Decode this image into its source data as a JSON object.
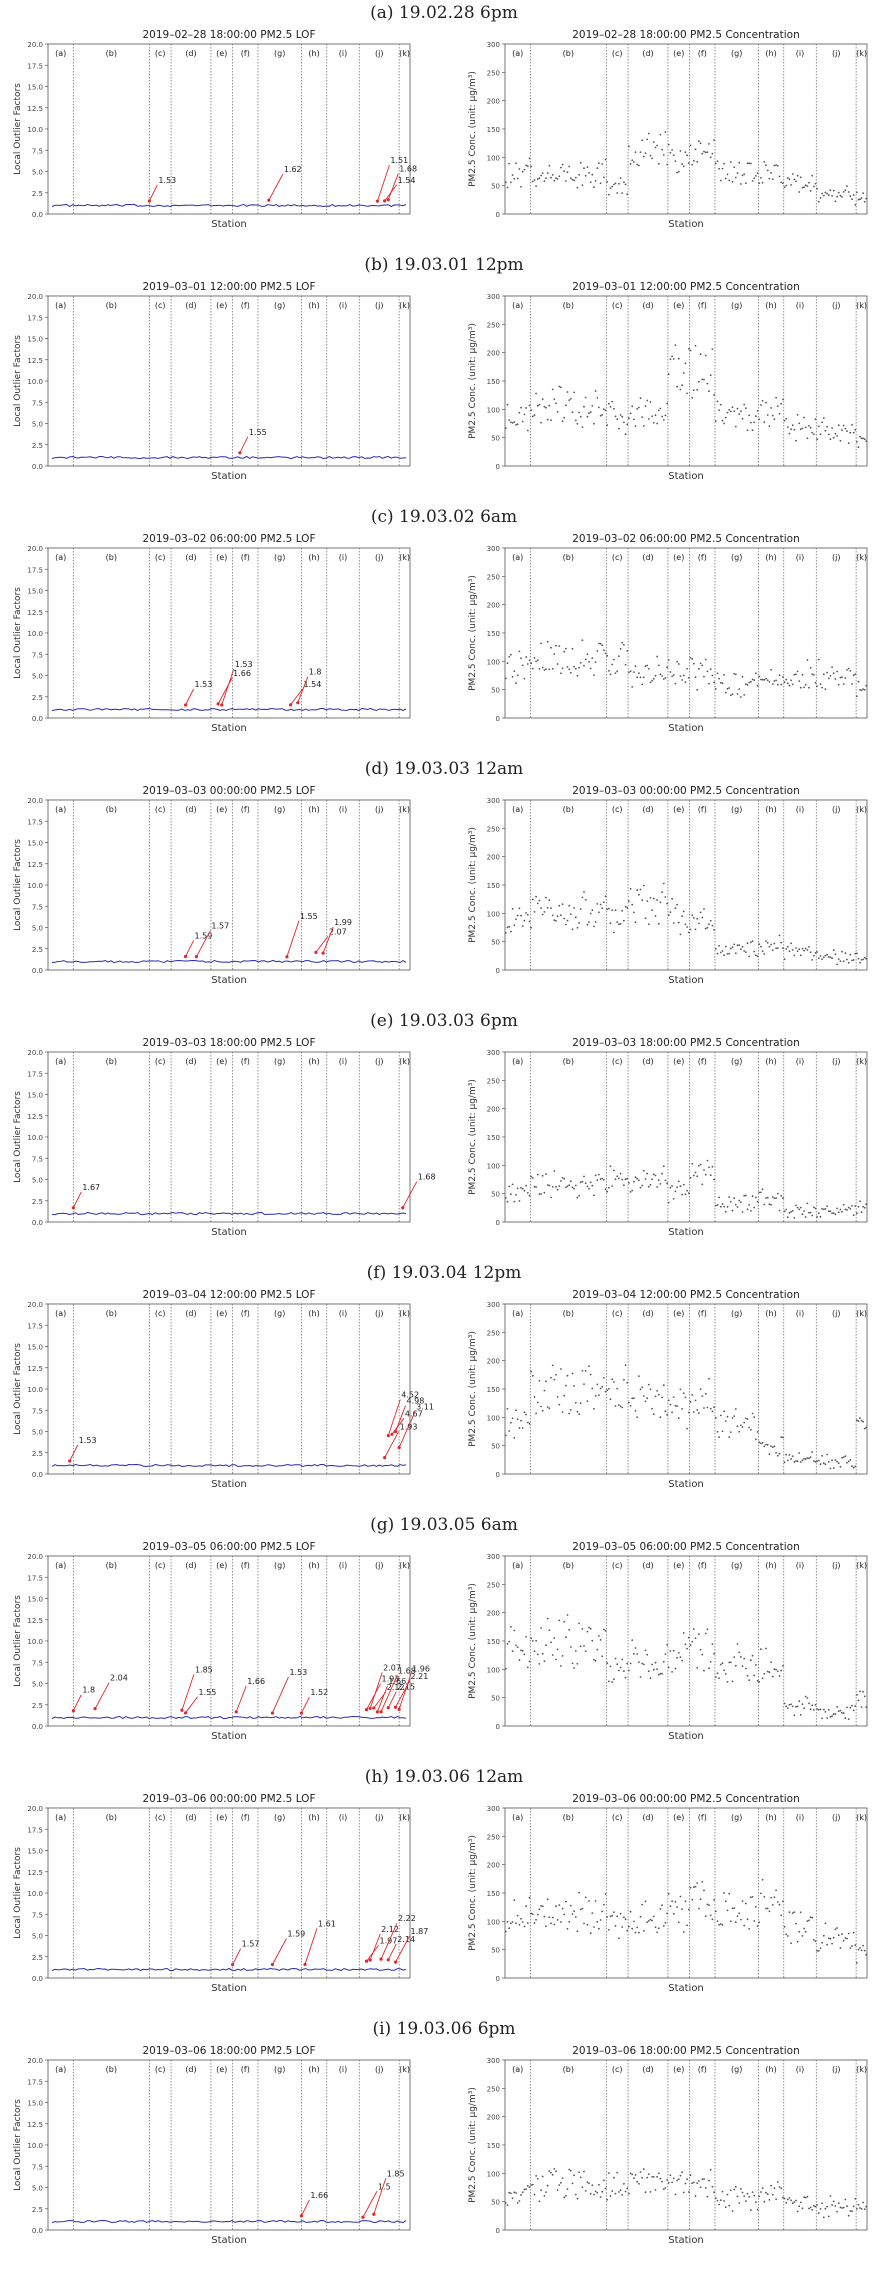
{
  "figure": {
    "x_axis_label": "Station",
    "lof_ylabel": "Local Outlier Factors",
    "conc_ylabel": "PM2.5 Conc. (unit: µg/m³)",
    "lof_yticks": [
      "0.0",
      "2.5",
      "5.0",
      "7.5",
      "10.0",
      "12.5",
      "15.0",
      "17.5",
      "20.0"
    ],
    "conc_yticks": [
      "0",
      "50",
      "100",
      "150",
      "200",
      "250",
      "300"
    ],
    "region_labels": [
      "(a)",
      "(b)",
      "(c)",
      "(d)",
      "(e)",
      "(f)",
      "(g)",
      "(h)",
      "(i)",
      "(j)",
      "(k)"
    ],
    "colors": {
      "lof_line": "#2b2bb0",
      "annotation": "#e0282c",
      "divider": "#777777",
      "point": "#555555"
    }
  },
  "rows": [
    {
      "title": "(a) 19.02.28 6pm",
      "lof_title": "2019–02–28 18:00:00 PM2.5 LOF",
      "conc_title": "2019–02–28 18:00:00 PM2.5 Concentration"
    },
    {
      "title": "(b) 19.03.01 12pm",
      "lof_title": "2019–03–01 12:00:00 PM2.5 LOF",
      "conc_title": "2019–03–01 12:00:00 PM2.5 Concentration"
    },
    {
      "title": "(c) 19.03.02 6am",
      "lof_title": "2019–03–02 06:00:00 PM2.5 LOF",
      "conc_title": "2019–03–02 06:00:00 PM2.5 Concentration"
    },
    {
      "title": "(d) 19.03.03 12am",
      "lof_title": "2019–03–03 00:00:00 PM2.5 LOF",
      "conc_title": "2019–03–03 00:00:00 PM2.5 Concentration"
    },
    {
      "title": "(e) 19.03.03 6pm",
      "lof_title": "2019–03–03 18:00:00 PM2.5 LOF",
      "conc_title": "2019–03–03 18:00:00 PM2.5 Concentration"
    },
    {
      "title": "(f) 19.03.04 12pm",
      "lof_title": "2019–03–04 12:00:00 PM2.5 LOF",
      "conc_title": "2019–03–04 12:00:00 PM2.5 Concentration"
    },
    {
      "title": "(g) 19.03.05 6am",
      "lof_title": "2019–03–05 06:00:00 PM2.5 LOF",
      "conc_title": "2019–03–05 06:00:00 PM2.5 Concentration"
    },
    {
      "title": "(h) 19.03.06 12am",
      "lof_title": "2019–03–06 00:00:00 PM2.5 LOF",
      "conc_title": "2019–03–06 00:00:00 PM2.5 Concentration"
    },
    {
      "title": "(i) 19.03.06 6pm",
      "lof_title": "2019–03–06 18:00:00 PM2.5 LOF",
      "conc_title": "2019–03–06 18:00:00 PM2.5 Concentration"
    }
  ],
  "chart_data": [
    {
      "type": "line",
      "panel": "lof",
      "row": "a",
      "ylim": [
        0,
        20
      ],
      "baseline": 1.0,
      "annotations": [
        {
          "station": 0.28,
          "value": 1.53,
          "label": "1.53"
        },
        {
          "station": 0.61,
          "value": 1.62,
          "label": "1.62"
        },
        {
          "station": 0.91,
          "value": 1.51,
          "label": "1.51"
        },
        {
          "station": 0.93,
          "value": 1.54,
          "label": "1.54"
        },
        {
          "station": 0.94,
          "value": 1.68,
          "label": "1.68"
        }
      ]
    },
    {
      "type": "scatter",
      "panel": "conc",
      "row": "a",
      "ylim": [
        0,
        300
      ],
      "segment_levels": [
        70,
        70,
        45,
        110,
        100,
        105,
        75,
        75,
        55,
        35,
        25
      ]
    },
    {
      "type": "line",
      "panel": "lof",
      "row": "b",
      "ylim": [
        0,
        20
      ],
      "baseline": 1.0,
      "annotations": [
        {
          "station": 0.53,
          "value": 1.55,
          "label": "1.55"
        }
      ]
    },
    {
      "type": "scatter",
      "panel": "conc",
      "row": "b",
      "ylim": [
        0,
        300
      ],
      "segment_levels": [
        85,
        105,
        90,
        90,
        175,
        170,
        90,
        90,
        70,
        60,
        50
      ]
    },
    {
      "type": "line",
      "panel": "lof",
      "row": "c",
      "ylim": [
        0,
        20
      ],
      "baseline": 1.0,
      "annotations": [
        {
          "station": 0.38,
          "value": 1.53,
          "label": "1.53"
        },
        {
          "station": 0.47,
          "value": 1.66,
          "label": "1.66"
        },
        {
          "station": 0.48,
          "value": 1.53,
          "label": "1.53"
        },
        {
          "station": 0.67,
          "value": 1.54,
          "label": "1.54"
        },
        {
          "station": 0.69,
          "value": 1.8,
          "label": "1.8"
        }
      ]
    },
    {
      "type": "scatter",
      "panel": "conc",
      "row": "c",
      "ylim": [
        0,
        300
      ],
      "segment_levels": [
        90,
        105,
        100,
        80,
        75,
        80,
        60,
        65,
        75,
        80,
        50
      ]
    },
    {
      "type": "line",
      "panel": "lof",
      "row": "d",
      "ylim": [
        0,
        20
      ],
      "baseline": 1.0,
      "annotations": [
        {
          "station": 0.38,
          "value": 1.59,
          "label": "1.59"
        },
        {
          "station": 0.41,
          "value": 1.57,
          "label": "1.57"
        },
        {
          "station": 0.66,
          "value": 1.55,
          "label": "1.55"
        },
        {
          "station": 0.74,
          "value": 2.07,
          "label": "2.07"
        },
        {
          "station": 0.76,
          "value": 1.99,
          "label": "1.99"
        }
      ]
    },
    {
      "type": "scatter",
      "panel": "conc",
      "row": "d",
      "ylim": [
        0,
        300
      ],
      "segment_levels": [
        85,
        105,
        90,
        115,
        95,
        85,
        35,
        45,
        30,
        25,
        20
      ]
    },
    {
      "type": "line",
      "panel": "lof",
      "row": "e",
      "ylim": [
        0,
        20
      ],
      "baseline": 1.0,
      "annotations": [
        {
          "station": 0.07,
          "value": 1.67,
          "label": "1.67"
        },
        {
          "station": 0.98,
          "value": 1.68,
          "label": "1.68"
        }
      ]
    },
    {
      "type": "scatter",
      "panel": "conc",
      "row": "e",
      "ylim": [
        0,
        300
      ],
      "segment_levels": [
        55,
        65,
        75,
        75,
        55,
        85,
        35,
        40,
        20,
        20,
        25
      ]
    },
    {
      "type": "line",
      "panel": "lof",
      "row": "f",
      "ylim": [
        0,
        20
      ],
      "baseline": 1.0,
      "annotations": [
        {
          "station": 0.06,
          "value": 1.53,
          "label": "1.53"
        },
        {
          "station": 0.93,
          "value": 1.93,
          "label": "1.93"
        },
        {
          "station": 0.94,
          "value": 4.52,
          "label": "4.52"
        },
        {
          "station": 0.95,
          "value": 4.67,
          "label": "4.67"
        },
        {
          "station": 0.96,
          "value": 4.98,
          "label": "4.98"
        },
        {
          "station": 0.97,
          "value": 3.11,
          "label": "3.11"
        }
      ]
    },
    {
      "type": "scatter",
      "panel": "conc",
      "row": "f",
      "ylim": [
        0,
        300
      ],
      "segment_levels": [
        90,
        150,
        150,
        130,
        115,
        130,
        90,
        50,
        25,
        20,
        80
      ]
    },
    {
      "type": "line",
      "panel": "lof",
      "row": "g",
      "ylim": [
        0,
        20
      ],
      "baseline": 1.0,
      "annotations": [
        {
          "station": 0.07,
          "value": 1.8,
          "label": "1.8"
        },
        {
          "station": 0.13,
          "value": 2.04,
          "label": "2.04"
        },
        {
          "station": 0.37,
          "value": 1.85,
          "label": "1.85"
        },
        {
          "station": 0.38,
          "value": 1.55,
          "label": "1.55"
        },
        {
          "station": 0.52,
          "value": 1.66,
          "label": "1.66"
        },
        {
          "station": 0.62,
          "value": 1.53,
          "label": "1.53"
        },
        {
          "station": 0.7,
          "value": 1.52,
          "label": "1.52"
        },
        {
          "station": 0.88,
          "value": 1.93,
          "label": "1.93"
        },
        {
          "station": 0.89,
          "value": 2.07,
          "label": "2.07"
        },
        {
          "station": 0.9,
          "value": 2.12,
          "label": "2.12"
        },
        {
          "station": 0.91,
          "value": 1.66,
          "label": "1.66"
        },
        {
          "station": 0.92,
          "value": 1.68,
          "label": "1.68"
        },
        {
          "station": 0.94,
          "value": 2.15,
          "label": "2.15"
        },
        {
          "station": 0.96,
          "value": 2.21,
          "label": "2.21"
        },
        {
          "station": 0.97,
          "value": 1.96,
          "label": "1.96"
        }
      ]
    },
    {
      "type": "scatter",
      "panel": "conc",
      "row": "g",
      "ylim": [
        0,
        300
      ],
      "segment_levels": [
        135,
        150,
        100,
        115,
        125,
        135,
        110,
        100,
        35,
        25,
        50
      ]
    },
    {
      "type": "line",
      "panel": "lof",
      "row": "h",
      "ylim": [
        0,
        20
      ],
      "baseline": 1.0,
      "annotations": [
        {
          "station": 0.51,
          "value": 1.57,
          "label": "1.57"
        },
        {
          "station": 0.62,
          "value": 1.59,
          "label": "1.59"
        },
        {
          "station": 0.71,
          "value": 1.61,
          "label": "1.61"
        },
        {
          "station": 0.88,
          "value": 1.97,
          "label": "1.97"
        },
        {
          "station": 0.89,
          "value": 2.12,
          "label": "2.12"
        },
        {
          "station": 0.92,
          "value": 2.22,
          "label": "2.22"
        },
        {
          "station": 0.94,
          "value": 2.14,
          "label": "2.14"
        },
        {
          "station": 0.96,
          "value": 1.87,
          "label": "1.87"
        }
      ]
    },
    {
      "type": "scatter",
      "panel": "conc",
      "row": "h",
      "ylim": [
        0,
        300
      ],
      "segment_levels": [
        110,
        115,
        90,
        100,
        120,
        140,
        115,
        130,
        90,
        70,
        45
      ]
    },
    {
      "type": "line",
      "panel": "lof",
      "row": "i",
      "ylim": [
        0,
        20
      ],
      "baseline": 1.0,
      "annotations": [
        {
          "station": 0.7,
          "value": 1.66,
          "label": "1.66"
        },
        {
          "station": 0.87,
          "value": 1.5,
          "label": "1.5"
        },
        {
          "station": 0.9,
          "value": 1.85,
          "label": "1.85"
        }
      ]
    },
    {
      "type": "scatter",
      "panel": "conc",
      "row": "i",
      "ylim": [
        0,
        300
      ],
      "segment_levels": [
        65,
        80,
        75,
        85,
        90,
        80,
        55,
        65,
        45,
        40,
        35
      ]
    }
  ]
}
